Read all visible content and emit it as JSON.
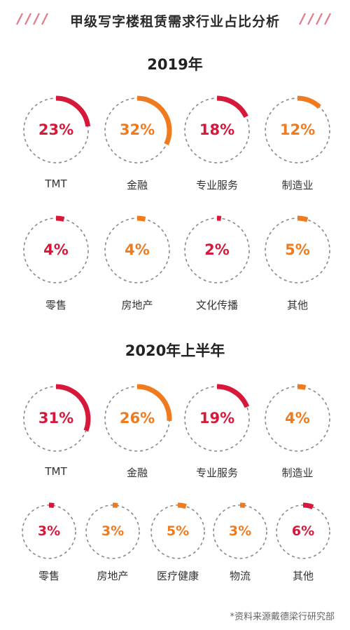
{
  "title": "甲级写字楼租赁需求行业占比分析",
  "colors": {
    "red": "#d6183b",
    "orange": "#f07a1e",
    "dash": "#8a8a8a"
  },
  "chart_data": [
    {
      "type": "pie",
      "title": "2019年",
      "unit": "%",
      "categories": [
        "TMT",
        "金融",
        "专业服务",
        "制造业",
        "零售",
        "房地产",
        "文化传播",
        "其他"
      ],
      "values": [
        23,
        32,
        18,
        12,
        4,
        4,
        2,
        5
      ],
      "labels": [
        "23%",
        "32%",
        "18%",
        "12%",
        "4%",
        "4%",
        "2%",
        "5%"
      ],
      "colors": [
        "#d6183b",
        "#f07a1e",
        "#d6183b",
        "#f07a1e",
        "#d6183b",
        "#f07a1e",
        "#d6183b",
        "#f07a1e"
      ]
    },
    {
      "type": "pie",
      "title": "2020年上半年",
      "unit": "%",
      "categories": [
        "TMT",
        "金融",
        "专业服务",
        "制造业",
        "零售",
        "房地产",
        "医疗健康",
        "物流",
        "其他"
      ],
      "values": [
        31,
        26,
        19,
        4,
        3,
        3,
        5,
        3,
        6
      ],
      "labels": [
        "31%",
        "26%",
        "19%",
        "4%",
        "3%",
        "3%",
        "5%",
        "3%",
        "6%"
      ],
      "colors": [
        "#d6183b",
        "#f07a1e",
        "#d6183b",
        "#f07a1e",
        "#d6183b",
        "#f07a1e",
        "#f07a1e",
        "#f07a1e",
        "#d6183b"
      ]
    }
  ],
  "source": "*资料来源戴德梁行研究部"
}
